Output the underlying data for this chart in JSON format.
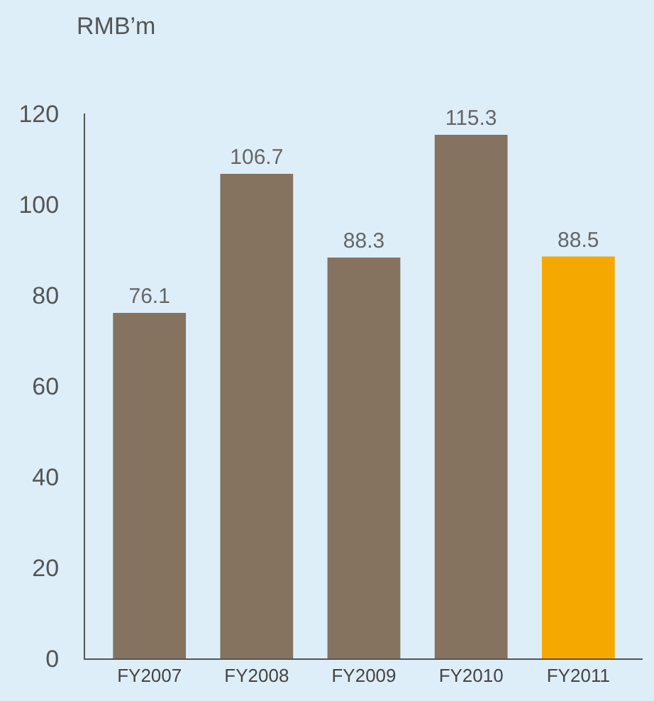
{
  "chart_data": {
    "type": "bar",
    "ylabel": "RMB’m",
    "categories": [
      "FY2007",
      "FY2008",
      "FY2009",
      "FY2010",
      "FY2011"
    ],
    "values": [
      76.1,
      106.7,
      88.3,
      115.3,
      88.5
    ],
    "colors": [
      "#85735f",
      "#85735f",
      "#85735f",
      "#85735f",
      "#f5a800"
    ],
    "ylim": [
      0,
      120
    ],
    "yticks": [
      0,
      20,
      40,
      60,
      80,
      100,
      120
    ],
    "grid": false,
    "data_labels": true,
    "legend": false
  }
}
